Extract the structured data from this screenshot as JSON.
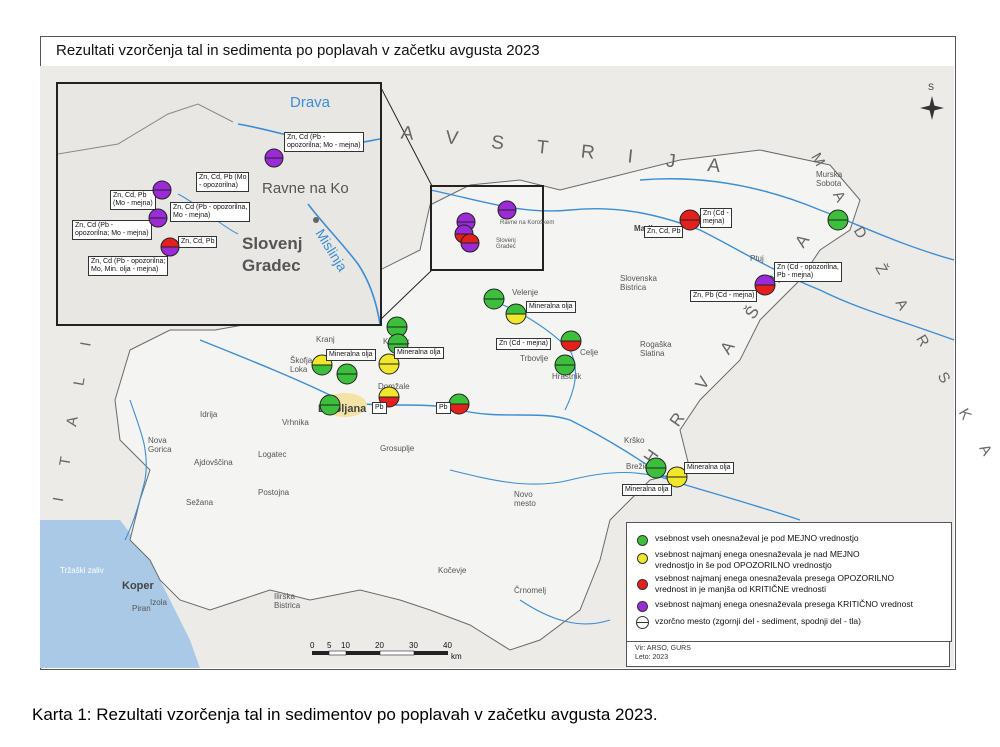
{
  "title": "Rezultati vzorčenja tal in sedimenta po poplavah v začetku avgusta 2023",
  "caption": "Karta 1: Rezultati vzorčenja tal in sedimentov po poplavah v začetku avgusta 2023.",
  "countries": {
    "austria": "A V S T R I J A",
    "hungary": "M A D Ž A R S K A",
    "italy": "I T A L I J A",
    "croatia": "H R V A Š K A"
  },
  "inset": {
    "river_drava": "Drava",
    "river_mislinja": "Mislinja",
    "town_ravne": "Ravne na Ko",
    "town_slovenj": "Slovenj",
    "town_gradec": "Gradec",
    "labels": [
      "Zn, Cd (Pb -\nopozorilna; Mo - mejna)",
      "Zn, Cd, Pb (Mo\n- opozorilna)",
      "Zn, Cd, Pb\n(Mo - mejna)",
      "Zn, Cd (Pb - opozorilna,\nMo - mejna)",
      "Zn, Cd (Pb -\nopozorilna; Mo - mejna)",
      "Zn, Cd, Pb",
      "Zn, Cd (Pb - opozorilna;\nMo, Min. olja - mejna)"
    ]
  },
  "places": [
    "Murska\nSobota",
    "Velenje",
    "Ptuj",
    "Slovenska\nBistrica",
    "Rogaška\nSlatina",
    "Celje",
    "Trbovlje",
    "Hrastnik",
    "Kranj",
    "Škofja\nLoka",
    "Domžale",
    "Ljubljana",
    "Kamnik",
    "Vrhnika",
    "Logatec",
    "Idrija",
    "Nova\nGorica",
    "Ajdovščina",
    "Postojna",
    "Grosuplje",
    "Krško",
    "Brežice",
    "Novo\nmesto",
    "Kočevje",
    "Črnomelj",
    "Koper",
    "Izola",
    "Piran",
    "Ilirska\nBistrica",
    "Sežana",
    "Ravne na Koroškem",
    "Slovenj\nGradec",
    "Maribor",
    "Tržaški zaliv"
  ],
  "site_labels": [
    "Zn (Cd -\nmejna)",
    "Zn, Cd, Pb",
    "Zn (Cd - opozorilna,\nPb - mejna)",
    "Zn, Pb (Cd - mejna)",
    "Mineralna olja",
    "Zn (Cd - mejna)",
    "Mineralna olja",
    "Mineralna olja",
    "Pb",
    "Pb",
    "Mineralna olja",
    "Mineralna olja"
  ],
  "compass": "S",
  "scale": {
    "ticks": [
      "0",
      "5",
      "10",
      "20",
      "30",
      "40"
    ],
    "unit": "km"
  },
  "legend": {
    "items": [
      {
        "color": "#3cc03c",
        "text": "vsebnost vseh onesnaževal je pod MEJNO vrednostjo"
      },
      {
        "color": "#f0e62a",
        "text": "vsebnost najmanj enega onesnaževala je nad MEJNO\nvrednostjo in še pod OPOZORILNO vrednostjo"
      },
      {
        "color": "#e3201b",
        "text": "vsebnost najmanj enega onesnaževala presega OPOZORILNO\nvrednost in je manjša od KRITIČNE vrednosti"
      },
      {
        "color": "#9a2bd6",
        "text": "vsebnost najmanj enega onesnaževala presega KRITIČNO vrednost"
      },
      {
        "color": "#ffffff",
        "text": "vzorčno mesto (zgornji del - sediment, spodnji del - tla)"
      }
    ]
  },
  "source": {
    "line1": "Vir: ARSO, GURS",
    "line2": "Leto: 2023"
  }
}
